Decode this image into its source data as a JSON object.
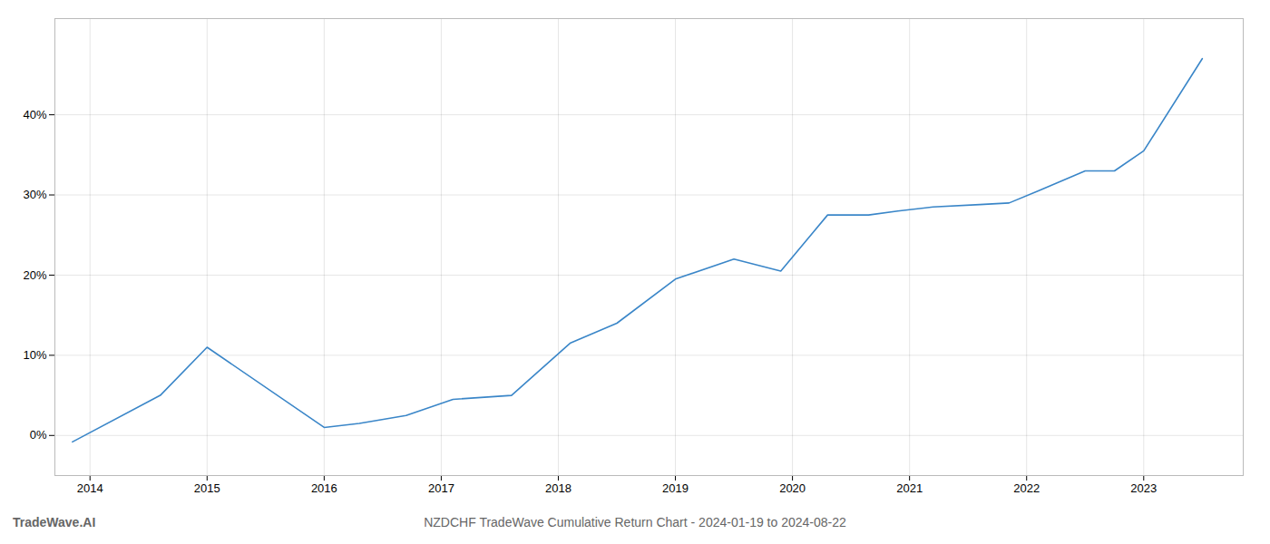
{
  "chart_data": {
    "type": "line",
    "title": "NZDCHF TradeWave Cumulative Return Chart - 2024-01-19 to 2024-08-22",
    "annotations": [
      "TradeWave.AI"
    ],
    "x": [
      2013.85,
      2014.6,
      2015.0,
      2016.0,
      2016.3,
      2016.7,
      2017.1,
      2017.6,
      2018.1,
      2018.5,
      2019.0,
      2019.5,
      2019.9,
      2020.3,
      2020.65,
      2020.9,
      2021.2,
      2021.6,
      2021.85,
      2022.1,
      2022.5,
      2022.75,
      2023.0,
      2023.5
    ],
    "values": [
      -0.8,
      5.0,
      11.0,
      1.0,
      1.5,
      2.5,
      4.5,
      5.0,
      11.5,
      14.0,
      19.5,
      22.0,
      20.5,
      27.5,
      27.5,
      28.0,
      28.5,
      28.8,
      29.0,
      30.5,
      33.0,
      33.0,
      35.5,
      47.0
    ],
    "color": "#3a86c8",
    "xlim": [
      2013.7,
      2023.85
    ],
    "xticks": [
      2014,
      2015,
      2016,
      2017,
      2018,
      2019,
      2020,
      2021,
      2022,
      2023
    ],
    "ylim": [
      -5,
      52
    ],
    "yticks": [
      {
        "value": 0,
        "label": "0%"
      },
      {
        "value": 10,
        "label": "10%"
      },
      {
        "value": 20,
        "label": "20%"
      },
      {
        "value": 30,
        "label": "30%"
      },
      {
        "value": 40,
        "label": "40%"
      }
    ],
    "grid": true
  }
}
